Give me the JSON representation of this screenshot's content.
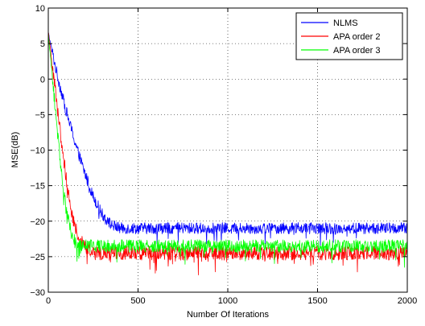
{
  "chart_data": {
    "type": "line",
    "title": "",
    "xlabel": "Number Of Iterations",
    "ylabel": "MSE(dB)",
    "xlim": [
      0,
      2000
    ],
    "ylim": [
      -30,
      10
    ],
    "xticks": [
      0,
      500,
      1000,
      1500,
      2000
    ],
    "yticks": [
      -30,
      -25,
      -20,
      -15,
      -10,
      -5,
      0,
      5,
      10
    ],
    "xtick_labels": [
      "0",
      "500",
      "1000",
      "1500",
      "2000"
    ],
    "ytick_labels": [
      "−30",
      "−25",
      "−20",
      "−15",
      "−10",
      "−5",
      "0",
      "5",
      "10"
    ],
    "grid": true,
    "grid_style": "dotted",
    "legend_position": "top-right",
    "series": [
      {
        "name": "NLMS",
        "color": "#0000ff",
        "start_db": 6.5,
        "steady_state_db": -21.0,
        "convergence_iterations": 350,
        "noise_db": 0.8,
        "x": [
          0,
          50,
          100,
          150,
          200,
          250,
          300,
          350,
          400,
          500,
          1000,
          1500,
          2000
        ],
        "y": [
          6.5,
          0.5,
          -4.5,
          -9.0,
          -13.0,
          -16.5,
          -19.0,
          -20.5,
          -21.0,
          -21.0,
          -21.0,
          -21.0,
          -21.0
        ]
      },
      {
        "name": "APA order 2",
        "color": "#ff0000",
        "start_db": 6.5,
        "steady_state_db": -24.5,
        "convergence_iterations": 200,
        "noise_db": 1.0,
        "x": [
          0,
          25,
          50,
          75,
          100,
          125,
          150,
          175,
          200,
          250,
          500,
          1000,
          1500,
          2000
        ],
        "y": [
          6.5,
          1.5,
          -3.5,
          -9.0,
          -14.0,
          -18.0,
          -21.0,
          -22.5,
          -23.5,
          -24.5,
          -24.5,
          -24.5,
          -24.5,
          -24.5
        ]
      },
      {
        "name": "APA order 3",
        "color": "#00ff00",
        "start_db": 6.5,
        "steady_state_db": -23.5,
        "convergence_iterations": 150,
        "noise_db": 0.9,
        "x": [
          0,
          25,
          50,
          75,
          100,
          125,
          150,
          175,
          200,
          500,
          1000,
          1500,
          2000
        ],
        "y": [
          6.5,
          -0.5,
          -7.0,
          -13.5,
          -18.5,
          -21.5,
          -23.0,
          -23.5,
          -23.5,
          -23.5,
          -23.5,
          -23.5,
          -23.5
        ]
      }
    ]
  }
}
